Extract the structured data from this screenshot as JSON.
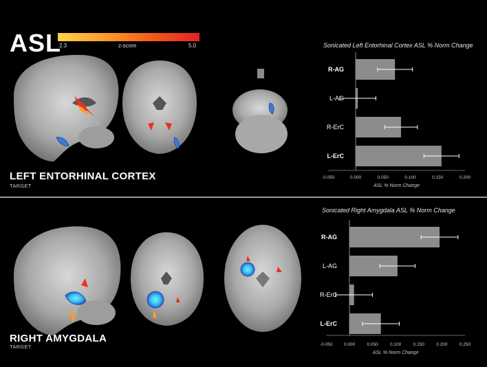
{
  "header": {
    "modality": "ASL",
    "colorbar": {
      "min_label": "2.3",
      "label": "z-score",
      "max_label": "5.0"
    }
  },
  "panels": [
    {
      "region": "LEFT ENTORHINAL CORTEX",
      "sublabel": "TARGET"
    },
    {
      "region": "RIGHT AMYGDALA",
      "sublabel": "TARGET"
    }
  ],
  "chart_data": [
    {
      "type": "bar",
      "orientation": "horizontal",
      "title": "Sonicated Left Entorhinal Cortex ASL % Norm Change",
      "xlabel": "ASL % Norm Change",
      "categories": [
        "R-AG",
        "L-AG",
        "R-ErC",
        "L-ErC"
      ],
      "bold_categories": [
        "R-AG",
        "L-ErC"
      ],
      "values": [
        0.072,
        0.004,
        0.083,
        0.157
      ],
      "errors": [
        0.032,
        0.033,
        0.03,
        0.032
      ],
      "xlim": [
        -0.05,
        0.2
      ],
      "ticks": [
        "-0.050",
        "0.000",
        "0.050",
        "0.100",
        "0.150",
        "0.200"
      ],
      "tick_values": [
        -0.05,
        0,
        0.05,
        0.1,
        0.15,
        0.2
      ],
      "bar_color": "#8c8c8c"
    },
    {
      "type": "bar",
      "orientation": "horizontal",
      "title": "Sonicated Right Amygdala ASL % Norm Change",
      "xlabel": "ASL % Norm Change",
      "categories": [
        "R-AG",
        "L-AG",
        "R-ErC",
        "L-ErC"
      ],
      "bold_categories": [
        "R-AG",
        "L-ErC"
      ],
      "values": [
        0.195,
        0.104,
        0.01,
        0.068
      ],
      "errors": [
        0.04,
        0.038,
        0.04,
        0.04
      ],
      "xlim": [
        -0.05,
        0.25
      ],
      "ticks": [
        "-0.050",
        "0.000",
        "0.050",
        "0.100",
        "0.150",
        "0.200",
        "0.250"
      ],
      "tick_values": [
        -0.05,
        0,
        0.05,
        0.1,
        0.15,
        0.2,
        0.25
      ],
      "bar_color": "#8c8c8c"
    }
  ],
  "colors": {
    "activation_hot": "#e8321e",
    "activation_warm": "#ff9a2a",
    "target_blue": "#3a7bd5",
    "target_cyan": "#35c8f0"
  }
}
